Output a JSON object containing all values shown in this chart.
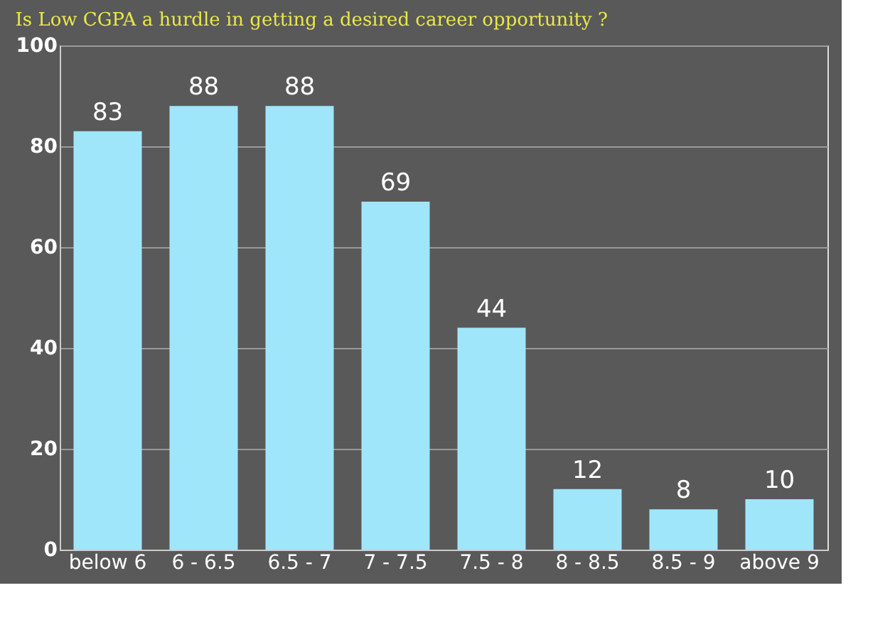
{
  "chart_data": {
    "type": "bar",
    "title": "Is Low CGPA a hurdle in getting a desired career opportunity ?",
    "categories": [
      "below 6",
      "6 - 6.5",
      "6.5 - 7",
      "7 - 7.5",
      "7.5 - 8",
      "8 - 8.5",
      "8.5 - 9",
      "above 9"
    ],
    "values": [
      83,
      88,
      88,
      69,
      44,
      12,
      8,
      10
    ],
    "color": "#a0e6fb",
    "ylim": [
      0,
      100
    ],
    "yticks": [
      0,
      20,
      40,
      60,
      80,
      100
    ],
    "grid": "y",
    "data_labels": true
  }
}
